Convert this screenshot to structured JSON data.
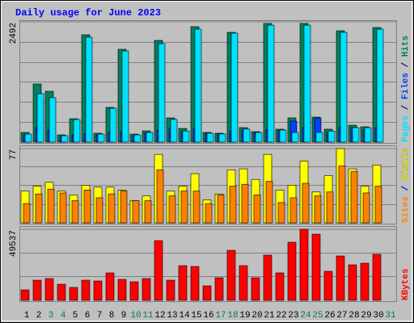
{
  "chart_data": [
    {
      "type": "bar",
      "title": "Daily usage for June 2023",
      "ylim": [
        0,
        2492
      ],
      "yticks": [
        2492
      ],
      "grid": true,
      "series": [
        {
          "name": "Hits",
          "color": "#00805c",
          "values": [
            201,
            1204,
            1053,
            150,
            485,
            2224,
            184,
            719,
            1923,
            167,
            234,
            2107,
            502,
            284,
            2391,
            201,
            184,
            2274,
            301,
            217,
            2458,
            268,
            502,
            2458,
            518,
            268,
            2307,
            351,
            318,
            2374,
            0
          ]
        },
        {
          "name": "Files",
          "color": "#0040ff",
          "values": [
            150,
            300,
            250,
            120,
            150,
            180,
            150,
            200,
            230,
            130,
            190,
            250,
            280,
            230,
            290,
            180,
            170,
            230,
            250,
            200,
            260,
            240,
            435,
            300,
            500,
            200,
            300,
            300,
            250,
            300,
            0
          ]
        },
        {
          "name": "Pages",
          "color": "#00e0ff",
          "values": [
            167,
            1003,
            920,
            134,
            468,
            2174,
            167,
            702,
            1889,
            150,
            200,
            2040,
            470,
            230,
            2341,
            184,
            170,
            2257,
            270,
            200,
            2424,
            250,
            200,
            2424,
            200,
            230,
            2274,
            300,
            300,
            2341,
            0
          ]
        }
      ]
    },
    {
      "type": "bar",
      "ylim": [
        0,
        77
      ],
      "yticks": [
        77
      ],
      "grid": true,
      "series": [
        {
          "name": "Visits",
          "color": "#ffff00",
          "values": [
            33,
            38,
            42,
            33,
            29,
            39,
            37,
            37,
            34,
            23,
            28,
            71,
            33,
            38,
            51,
            24,
            30,
            55,
            56,
            45,
            71,
            34,
            39,
            64,
            32,
            49,
            77,
            56,
            38,
            60,
            0
          ]
        },
        {
          "name": "Sites",
          "color": "#ff8000",
          "values": [
            20,
            30,
            35,
            31,
            23,
            34,
            26,
            30,
            33,
            23,
            23,
            55,
            28,
            33,
            33,
            20,
            29,
            38,
            40,
            29,
            43,
            21,
            26,
            41,
            28,
            32,
            59,
            53,
            31,
            38,
            0
          ]
        }
      ]
    },
    {
      "type": "bar",
      "ylim": [
        0,
        49537
      ],
      "yticks": [
        49537
      ],
      "grid": true,
      "series": [
        {
          "name": "KBytes",
          "color": "#ff0000",
          "values": [
            7319,
            14075,
            15201,
            11260,
            9008,
            14075,
            13512,
            19142,
            14638,
            12949,
            15201,
            41662,
            14075,
            24209,
            23646,
            10134,
            15764,
            34906,
            24209,
            15764,
            31528,
            19142,
            40536,
            49537,
            46166,
            20268,
            30965,
            24772,
            25898,
            32091,
            0
          ]
        }
      ],
      "categories": [
        "1",
        "2",
        "3",
        "4",
        "5",
        "6",
        "7",
        "8",
        "9",
        "10",
        "11",
        "12",
        "13",
        "14",
        "15",
        "16",
        "17",
        "18",
        "19",
        "20",
        "21",
        "22",
        "23",
        "24",
        "25",
        "26",
        "27",
        "28",
        "29",
        "30",
        "31"
      ],
      "category_colors": [
        "#000000",
        "#000000",
        "#008040",
        "#008040",
        "#000000",
        "#000000",
        "#000000",
        "#000000",
        "#000000",
        "#008040",
        "#008040",
        "#000000",
        "#000000",
        "#000000",
        "#000000",
        "#000000",
        "#008040",
        "#008040",
        "#000000",
        "#000000",
        "#000000",
        "#000000",
        "#000000",
        "#008040",
        "#008040",
        "#000000",
        "#000000",
        "#000000",
        "#000000",
        "#000000",
        "#008040"
      ]
    }
  ]
}
